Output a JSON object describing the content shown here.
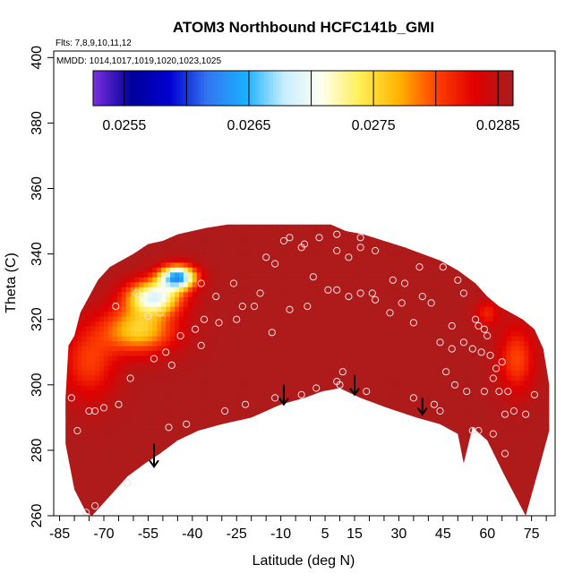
{
  "title": "ATOM3 Northbound HCFC141b_GMI",
  "flights_note": "Flts: 7,8,9,10,11,12",
  "dates_note": "MMDD: 1014,1017,1019,1020,1023,1025",
  "chart_data": {
    "type": "heatmap",
    "xlabel": "Latitude (deg N)",
    "ylabel": "Theta (C)",
    "xlim": [
      -87,
      83
    ],
    "ylim": [
      260,
      402
    ],
    "x_ticks": [
      "-85",
      "-70",
      "-55",
      "-40",
      "-25",
      "-10",
      "5",
      "15",
      "30",
      "45",
      "60",
      "75"
    ],
    "x_tick_values": [
      -85,
      -70,
      -55,
      -40,
      -25,
      -10,
      5,
      15,
      30,
      45,
      60,
      75
    ],
    "x_minor_step": 5,
    "y_ticks": [
      "260",
      "280",
      "300",
      "320",
      "340",
      "360",
      "380",
      "400"
    ],
    "y_tick_values": [
      260,
      280,
      300,
      320,
      340,
      360,
      380,
      400
    ],
    "colorbar": {
      "tick_labels": [
        "0.0255",
        "0.0265",
        "0.0275",
        "0.0285"
      ],
      "tick_values": [
        0.0255,
        0.0265,
        0.0275,
        0.0285
      ],
      "range": [
        0.02525,
        0.02862
      ],
      "colors": [
        "#7b2fe0",
        "#00009a",
        "#0000d0",
        "#3377f0",
        "#19b0ff",
        "#c8eeff",
        "#ffffee",
        "#ffee55",
        "#ffb400",
        "#ff4000",
        "#e00000",
        "#a81e1e"
      ]
    },
    "field": {
      "upper_boundary": [
        [
          -83,
          296
        ],
        [
          -82,
          312
        ],
        [
          -80,
          315
        ],
        [
          -78,
          322
        ],
        [
          -75,
          327
        ],
        [
          -72,
          332
        ],
        [
          -68,
          336
        ],
        [
          -64,
          338
        ],
        [
          -60,
          340
        ],
        [
          -55,
          343
        ],
        [
          -50,
          344
        ],
        [
          -45,
          346
        ],
        [
          -40,
          347
        ],
        [
          -35,
          348
        ],
        [
          -28,
          349
        ],
        [
          -20,
          349
        ],
        [
          -12,
          349
        ],
        [
          -5,
          349
        ],
        [
          2,
          349
        ],
        [
          7,
          349
        ],
        [
          12,
          347
        ],
        [
          18,
          346
        ],
        [
          25,
          344
        ],
        [
          32,
          342
        ],
        [
          38,
          340
        ],
        [
          44,
          338
        ],
        [
          50,
          335
        ],
        [
          56,
          331
        ],
        [
          60,
          327
        ],
        [
          64,
          324
        ],
        [
          68,
          322
        ],
        [
          72,
          320
        ],
        [
          76,
          317
        ],
        [
          79,
          311
        ],
        [
          81,
          300
        ],
        [
          81,
          286
        ]
      ],
      "lower_boundary": [
        [
          81,
          286
        ],
        [
          78,
          276
        ],
        [
          73,
          260
        ],
        [
          66,
          272
        ],
        [
          60,
          283
        ],
        [
          55,
          287
        ],
        [
          52,
          276
        ],
        [
          50,
          285
        ],
        [
          44,
          288
        ],
        [
          36,
          290
        ],
        [
          26,
          293
        ],
        [
          17,
          296
        ],
        [
          10,
          299
        ],
        [
          4,
          298
        ],
        [
          -2,
          296
        ],
        [
          -10,
          294
        ],
        [
          -20,
          290
        ],
        [
          -30,
          288
        ],
        [
          -38,
          286
        ],
        [
          -45,
          283
        ],
        [
          -51,
          279
        ],
        [
          -56,
          276
        ],
        [
          -62,
          272
        ],
        [
          -68,
          266
        ],
        [
          -72,
          262
        ],
        [
          -74,
          260
        ],
        [
          -76,
          261
        ],
        [
          -80,
          268
        ],
        [
          -83,
          282
        ],
        [
          -83,
          296
        ]
      ],
      "background_value": 0.02858,
      "anomalies": [
        {
          "lat": -45,
          "theta": 333,
          "value": 0.0264,
          "spread_lat": 6,
          "spread_theta": 3.5
        },
        {
          "lat": -53,
          "theta": 327,
          "value": 0.027,
          "spread_lat": 9,
          "spread_theta": 5
        },
        {
          "lat": -58,
          "theta": 317,
          "value": 0.02755,
          "spread_lat": 12,
          "spread_theta": 7
        },
        {
          "lat": -75,
          "theta": 307,
          "value": 0.02805,
          "spread_lat": 9,
          "spread_theta": 11
        },
        {
          "lat": 70,
          "theta": 308,
          "value": 0.028,
          "spread_lat": 6,
          "spread_theta": 10
        },
        {
          "lat": 60,
          "theta": 322,
          "value": 0.02815,
          "spread_lat": 4,
          "spread_theta": 4
        }
      ]
    },
    "observations": [
      {
        "lat": -76,
        "theta": 261
      },
      {
        "lat": -73,
        "theta": 263
      },
      {
        "lat": -62,
        "theta": 270
      },
      {
        "lat": -48,
        "theta": 287
      },
      {
        "lat": -42,
        "theta": 288
      },
      {
        "lat": -29,
        "theta": 292
      },
      {
        "lat": -22,
        "theta": 294
      },
      {
        "lat": -12,
        "theta": 296
      },
      {
        "lat": -3,
        "theta": 297
      },
      {
        "lat": 2,
        "theta": 299
      },
      {
        "lat": 9,
        "theta": 301
      },
      {
        "lat": 10,
        "theta": 300
      },
      {
        "lat": 11,
        "theta": 304
      },
      {
        "lat": 19,
        "theta": 298
      },
      {
        "lat": 35,
        "theta": 296
      },
      {
        "lat": 42,
        "theta": 294
      },
      {
        "lat": 44,
        "theta": 292
      },
      {
        "lat": 55,
        "theta": 286
      },
      {
        "lat": 57,
        "theta": 286
      },
      {
        "lat": 62,
        "theta": 285
      },
      {
        "lat": 66,
        "theta": 279
      },
      {
        "lat": 66,
        "theta": 291
      },
      {
        "lat": 69,
        "theta": 292
      },
      {
        "lat": 73,
        "theta": 291
      },
      {
        "lat": 76,
        "theta": 297
      },
      {
        "lat": -81,
        "theta": 296
      },
      {
        "lat": -79,
        "theta": 286
      },
      {
        "lat": -75,
        "theta": 292
      },
      {
        "lat": -73,
        "theta": 292
      },
      {
        "lat": -70,
        "theta": 293
      },
      {
        "lat": -65,
        "theta": 294
      },
      {
        "lat": -61,
        "theta": 302
      },
      {
        "lat": -53,
        "theta": 308
      },
      {
        "lat": -49,
        "theta": 310
      },
      {
        "lat": -44,
        "theta": 315
      },
      {
        "lat": -39,
        "theta": 317
      },
      {
        "lat": -36,
        "theta": 320
      },
      {
        "lat": -31,
        "theta": 319
      },
      {
        "lat": -25,
        "theta": 320
      },
      {
        "lat": -19,
        "theta": 324
      },
      {
        "lat": -13,
        "theta": 316
      },
      {
        "lat": -7,
        "theta": 323
      },
      {
        "lat": -1,
        "theta": 324
      },
      {
        "lat": 1,
        "theta": 333
      },
      {
        "lat": 6,
        "theta": 329
      },
      {
        "lat": 9,
        "theta": 329
      },
      {
        "lat": 13,
        "theta": 327
      },
      {
        "lat": 17,
        "theta": 328
      },
      {
        "lat": 22,
        "theta": 326
      },
      {
        "lat": 27,
        "theta": 322
      },
      {
        "lat": 31,
        "theta": 325
      },
      {
        "lat": 35,
        "theta": 319
      },
      {
        "lat": 38,
        "theta": 327
      },
      {
        "lat": 41,
        "theta": 325
      },
      {
        "lat": 44,
        "theta": 313
      },
      {
        "lat": 48,
        "theta": 311
      },
      {
        "lat": 52,
        "theta": 313
      },
      {
        "lat": 55,
        "theta": 311
      },
      {
        "lat": 58,
        "theta": 310
      },
      {
        "lat": 61,
        "theta": 309
      },
      {
        "lat": -47,
        "theta": 306
      },
      {
        "lat": -37,
        "theta": 312
      },
      {
        "lat": -32,
        "theta": 327
      },
      {
        "lat": -26,
        "theta": 331
      },
      {
        "lat": -15,
        "theta": 339
      },
      {
        "lat": -12,
        "theta": 337
      },
      {
        "lat": -7,
        "theta": 345
      },
      {
        "lat": -2,
        "theta": 343
      },
      {
        "lat": 3,
        "theta": 345
      },
      {
        "lat": 9,
        "theta": 341
      },
      {
        "lat": 13,
        "theta": 339
      },
      {
        "lat": 17,
        "theta": 342
      },
      {
        "lat": 22,
        "theta": 341
      },
      {
        "lat": 32,
        "theta": 331
      },
      {
        "lat": 45,
        "theta": 336
      },
      {
        "lat": 50,
        "theta": 332
      },
      {
        "lat": 52,
        "theta": 328
      },
      {
        "lat": 56,
        "theta": 320
      },
      {
        "lat": 59,
        "theta": 317
      },
      {
        "lat": 63,
        "theta": 305
      },
      {
        "lat": 64,
        "theta": 298
      },
      {
        "lat": 59,
        "theta": 298
      },
      {
        "lat": 53,
        "theta": 298
      },
      {
        "lat": 46,
        "theta": 304
      },
      {
        "lat": 49,
        "theta": 300
      },
      {
        "lat": 57,
        "theta": 318
      },
      {
        "lat": 60,
        "theta": 315
      },
      {
        "lat": 62,
        "theta": 302
      },
      {
        "lat": 65,
        "theta": 307
      },
      {
        "lat": 67,
        "theta": 298
      },
      {
        "lat": -66,
        "theta": 324
      },
      {
        "lat": -59,
        "theta": 328
      },
      {
        "lat": -55,
        "theta": 321
      },
      {
        "lat": -51,
        "theta": 322
      },
      {
        "lat": -37,
        "theta": 331
      },
      {
        "lat": -23,
        "theta": 324
      },
      {
        "lat": -17,
        "theta": 328
      },
      {
        "lat": -9,
        "theta": 344
      },
      {
        "lat": -3,
        "theta": 342
      },
      {
        "lat": 9,
        "theta": 346
      },
      {
        "lat": 17,
        "theta": 345
      },
      {
        "lat": 21,
        "theta": 328
      },
      {
        "lat": 28,
        "theta": 332
      },
      {
        "lat": 37,
        "theta": 336
      },
      {
        "lat": 48,
        "theta": 318
      }
    ],
    "arrows": [
      {
        "lat": -53,
        "theta_start": 282,
        "theta_end": 275
      },
      {
        "lat": -9,
        "theta_start": 300,
        "theta_end": 294
      },
      {
        "lat": 15,
        "theta_start": 303,
        "theta_end": 297
      },
      {
        "lat": 38,
        "theta_start": 296,
        "theta_end": 291
      }
    ]
  }
}
